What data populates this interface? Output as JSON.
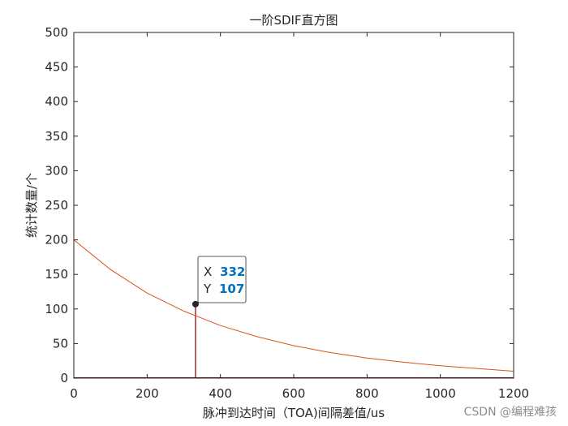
{
  "chart_data": {
    "type": "line",
    "title": "一阶SDIF直方图",
    "xlabel": "脉冲到达时间（TOA)间隔差值/us",
    "ylabel": "统计数量/个",
    "xlim": [
      0,
      1200
    ],
    "ylim": [
      0,
      500
    ],
    "xticks": [
      "0",
      "200",
      "400",
      "600",
      "800",
      "1000",
      "1200"
    ],
    "yticks": [
      "0",
      "50",
      "100",
      "150",
      "200",
      "250",
      "300",
      "350",
      "400",
      "450",
      "500"
    ],
    "grid": false,
    "series": [
      {
        "style": "histogram-stems",
        "color": "#7f0000",
        "x": [
          332
        ],
        "values": [
          107
        ]
      },
      {
        "style": "threshold-curve",
        "color": "#d95319",
        "x": [
          0,
          100,
          200,
          300,
          400,
          500,
          600,
          700,
          800,
          900,
          1000,
          1100,
          1200
        ],
        "values": [
          200,
          157,
          123,
          97,
          76,
          60,
          47,
          37,
          29,
          23,
          18,
          14,
          10
        ]
      }
    ],
    "datatip": {
      "x_label": "X",
      "x_value": "332",
      "y_label": "Y",
      "y_value": "107",
      "value_color": "#0072bd"
    }
  },
  "watermark": "CSDN @编程难孩"
}
